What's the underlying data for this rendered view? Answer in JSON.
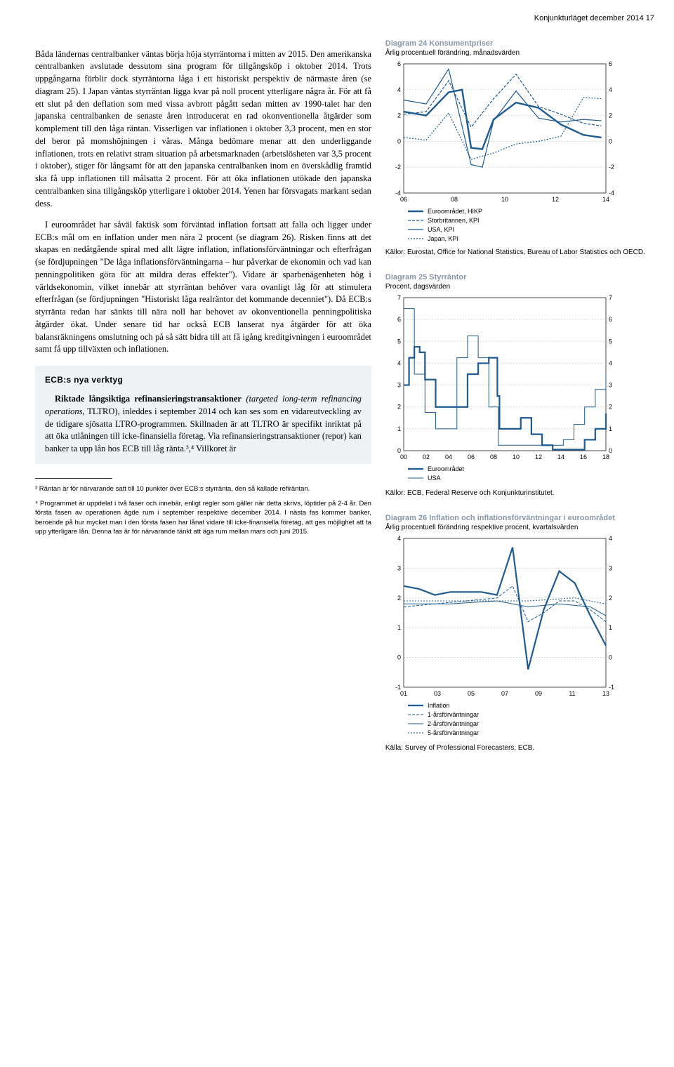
{
  "header": "Konjunkturläget december 2014   17",
  "body": {
    "p1": "Båda ländernas centralbanker väntas börja höja styrräntorna i mitten av 2015. Den amerikanska centralbanken avslutade dessutom sina program för tillgångsköp i oktober 2014.",
    "p2": "Trots uppgångarna förblir dock styrräntorna låga i ett historiskt perspektiv de närmaste åren (se diagram 25). I Japan väntas styrräntan ligga kvar på noll procent ytterligare några år. För att få ett slut på den deflation som med vissa avbrott pågått sedan mitten av 1990-talet har den japanska centralbanken de senaste åren introducerat en rad okonventionella åtgärder som komplement till den låga räntan. Visserligen var inflationen i oktober 3,3 procent, men en stor del beror på momshöjningen i våras. Många bedömare menar att den underliggande inflationen, trots en relativt stram situation på arbetsmarknaden (arbetslösheten var 3,5 procent i oktober), stiger för långsamt för att den japanska centralbanken inom en överskådlig framtid ska få upp inflationen till målsatta 2 procent. För att öka inflationen utökade den japanska centralbanken sina tillgångsköp ytterligare i oktober 2014. Yenen har försvagats markant sedan dess.",
    "p3": "I euroområdet har såväl faktisk som förväntad inflation fortsatt att falla och ligger under ECB:s mål om en inflation under men nära 2 procent (se diagram 26). Risken finns att det skapas en nedåtgående spiral med allt lägre inflation, inflationsförväntningar och efterfrågan (se fördjupningen \"De låga inflationsförväntningarna – hur påverkar de ekonomin och vad kan penningpolitiken göra för att mildra deras effekter\"). Vidare är sparbenägenheten hög i världsekonomin, vilket innebär att styrräntan behöver vara ovanligt låg för att stimulera efterfrågan (se fördjupningen \"Historiskt låga realräntor det kommande decenniet\"). Då ECB:s styrränta redan har sänkts till nära noll har behovet av okonventionella penningpolitiska åtgärder ökat. Under senare tid har också ECB lanserat nya åtgärder för att öka balansräkningens omslutning och på så sätt bidra till att få igång kreditgivningen i euroområdet samt få upp tillväxten och inflationen."
  },
  "box": {
    "title": "ECB:s nya verktyg",
    "lead": "Riktade långsiktiga refinansieringstransaktioner",
    "lead_it": "(targeted long-term refinancing operations,",
    "lead_after": " TLTRO), inleddes i september 2014 och kan ses som en vidareutveckling av de tidigare sjösatta LTRO-programmen. Skillnaden är att TLTRO är specifikt inriktat på att öka utlåningen till icke-finansiella företag. Via refinansieringstransaktioner (repor) kan banker ta upp lån hos ECB till låg ränta.³,⁴ Villkoret är"
  },
  "footnotes": {
    "f3": "³ Räntan är för närvarande satt till 10 punkter över ECB:s styrränta, den så kallade refiräntan.",
    "f4": "⁴ Programmet är uppdelat i två faser och innebär, enligt regler som gäller när detta skrivs, löptider på 2-4 år. Den första fasen av operationen ägde rum i september respektive december 2014. I nästa fas kommer banker, beroende på hur mycket man i den första fasen har lånat vidare till icke-finansiella företag, att ges möjlighet att ta upp ytterligare lån. Denna fas är för närvarande tänkt att äga rum mellan mars och juni 2015."
  },
  "chart24": {
    "title": "Diagram 24 Konsumentpriser",
    "sub": "Årlig procentuell förändring, månadsvärden",
    "source": "Källor: Eurostat, Office for National Statistics, Bureau of Labor Statistics och OECD.",
    "ylim": [
      -4,
      6
    ],
    "ytick_step": 2,
    "x_ticks": [
      "06",
      "08",
      "10",
      "12",
      "14"
    ],
    "x_range": [
      2006,
      2015
    ],
    "legend": [
      "Euroområdet, HIKP",
      "Storbritannen, KPI",
      "USA, KPI",
      "Japan, KPI"
    ],
    "colors": [
      "#1f5b8f",
      "#1f5b8f",
      "#1f5b8f",
      "#1f5b8f"
    ],
    "dash": [
      "none",
      "4 2",
      "none",
      "2 2"
    ],
    "widths": [
      2.4,
      1.2,
      1.2,
      1.2
    ],
    "series": {
      "euro": [
        [
          2006,
          2.3
        ],
        [
          2007,
          2.0
        ],
        [
          2008,
          3.8
        ],
        [
          2008.6,
          4.0
        ],
        [
          2009,
          -0.5
        ],
        [
          2009.5,
          -0.6
        ],
        [
          2010,
          1.7
        ],
        [
          2011,
          3.0
        ],
        [
          2012,
          2.6
        ],
        [
          2013,
          1.3
        ],
        [
          2014,
          0.5
        ],
        [
          2014.8,
          0.3
        ]
      ],
      "uk": [
        [
          2006,
          2.1
        ],
        [
          2007,
          2.3
        ],
        [
          2008,
          4.7
        ],
        [
          2009,
          1.1
        ],
        [
          2010,
          3.3
        ],
        [
          2011,
          5.2
        ],
        [
          2012,
          2.7
        ],
        [
          2013,
          2.1
        ],
        [
          2014,
          1.4
        ],
        [
          2014.8,
          1.2
        ]
      ],
      "usa": [
        [
          2006,
          3.2
        ],
        [
          2007,
          2.9
        ],
        [
          2008,
          5.6
        ],
        [
          2009,
          -1.8
        ],
        [
          2009.5,
          -2.0
        ],
        [
          2010,
          1.6
        ],
        [
          2011,
          3.9
        ],
        [
          2012,
          1.8
        ],
        [
          2013,
          1.5
        ],
        [
          2014,
          1.7
        ],
        [
          2014.8,
          1.6
        ]
      ],
      "japan": [
        [
          2006,
          0.3
        ],
        [
          2007,
          0.1
        ],
        [
          2008,
          2.2
        ],
        [
          2009,
          -1.4
        ],
        [
          2010,
          -0.9
        ],
        [
          2011,
          -0.2
        ],
        [
          2012,
          0.0
        ],
        [
          2013,
          0.4
        ],
        [
          2014,
          3.4
        ],
        [
          2014.8,
          3.3
        ]
      ]
    }
  },
  "chart25": {
    "title": "Diagram 25 Styrräntor",
    "sub": "Procent, dagsvärden",
    "source": "Källor: ECB, Federal Reserve och Konjunktur­institutet.",
    "ylim": [
      0,
      7
    ],
    "ytick_step": 1,
    "x_ticks": [
      "00",
      "02",
      "04",
      "06",
      "08",
      "10",
      "12",
      "14",
      "16",
      "18"
    ],
    "x_range": [
      2000,
      2019
    ],
    "legend": [
      "Euroområdet",
      "USA"
    ],
    "colors": [
      "#1f5b8f",
      "#1f5b8f"
    ],
    "widths": [
      2.2,
      1.0
    ],
    "series": {
      "euro": [
        [
          2000,
          3.0
        ],
        [
          2000.5,
          4.25
        ],
        [
          2001,
          4.75
        ],
        [
          2001.5,
          4.5
        ],
        [
          2002,
          3.25
        ],
        [
          2003,
          2.0
        ],
        [
          2005,
          2.0
        ],
        [
          2006,
          3.5
        ],
        [
          2007,
          4.0
        ],
        [
          2008,
          4.25
        ],
        [
          2008.8,
          2.5
        ],
        [
          2009,
          1.0
        ],
        [
          2011,
          1.5
        ],
        [
          2012,
          0.75
        ],
        [
          2013,
          0.25
        ],
        [
          2014,
          0.05
        ],
        [
          2016,
          0.05
        ],
        [
          2017,
          0.5
        ],
        [
          2018,
          1.0
        ],
        [
          2019,
          1.7
        ]
      ],
      "usa": [
        [
          2000,
          6.5
        ],
        [
          2001,
          3.5
        ],
        [
          2002,
          1.75
        ],
        [
          2003,
          1.0
        ],
        [
          2004,
          1.0
        ],
        [
          2005,
          4.25
        ],
        [
          2006,
          5.25
        ],
        [
          2007,
          4.25
        ],
        [
          2008,
          2.0
        ],
        [
          2008.9,
          0.25
        ],
        [
          2014,
          0.25
        ],
        [
          2015,
          0.5
        ],
        [
          2016,
          1.2
        ],
        [
          2017,
          2.0
        ],
        [
          2018,
          2.8
        ],
        [
          2019,
          3.5
        ]
      ]
    }
  },
  "chart26": {
    "title": "Diagram 26 Inflation och inflationsförväntningar i euroområdet",
    "sub": "Årlig procentuell förändring respektive procent, kvartalsvärden",
    "source": "Källa: Survey of Professional Forecasters, ECB.",
    "ylim": [
      -1,
      4
    ],
    "ytick_step": 1,
    "x_ticks": [
      "01",
      "03",
      "05",
      "07",
      "09",
      "11",
      "13"
    ],
    "x_range": [
      2001,
      2014
    ],
    "legend": [
      "Inflation",
      "1-årsförväntningar",
      "2-årsförväntningar",
      "5-årsförväntningar"
    ],
    "colors": [
      "#1f5b8f",
      "#1f5b8f",
      "#1f5b8f",
      "#1f5b8f"
    ],
    "dash": [
      "none",
      "4 2",
      "none",
      "2 2"
    ],
    "widths": [
      2.2,
      1.0,
      1.0,
      1.0
    ],
    "series": {
      "inflation": [
        [
          2001,
          2.4
        ],
        [
          2002,
          2.3
        ],
        [
          2003,
          2.1
        ],
        [
          2004,
          2.2
        ],
        [
          2005,
          2.2
        ],
        [
          2006,
          2.2
        ],
        [
          2007,
          2.1
        ],
        [
          2008,
          3.7
        ],
        [
          2009,
          -0.4
        ],
        [
          2010,
          1.6
        ],
        [
          2011,
          2.9
        ],
        [
          2012,
          2.5
        ],
        [
          2013,
          1.4
        ],
        [
          2014,
          0.4
        ]
      ],
      "y1": [
        [
          2001,
          1.7
        ],
        [
          2003,
          1.8
        ],
        [
          2005,
          1.9
        ],
        [
          2007,
          2.0
        ],
        [
          2008,
          2.4
        ],
        [
          2009,
          1.2
        ],
        [
          2010,
          1.5
        ],
        [
          2011,
          1.9
        ],
        [
          2012,
          1.9
        ],
        [
          2013,
          1.6
        ],
        [
          2014,
          1.2
        ]
      ],
      "y2": [
        [
          2001,
          1.8
        ],
        [
          2004,
          1.8
        ],
        [
          2007,
          1.9
        ],
        [
          2009,
          1.7
        ],
        [
          2011,
          1.8
        ],
        [
          2013,
          1.7
        ],
        [
          2014,
          1.4
        ]
      ],
      "y5": [
        [
          2001,
          1.9
        ],
        [
          2005,
          1.9
        ],
        [
          2009,
          1.9
        ],
        [
          2012,
          2.0
        ],
        [
          2014,
          1.8
        ]
      ]
    }
  }
}
